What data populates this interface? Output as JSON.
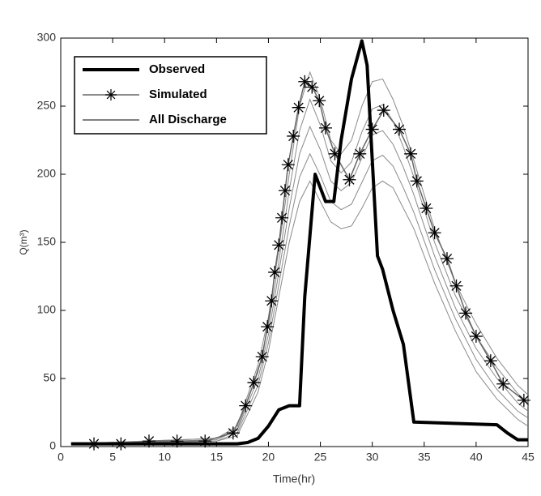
{
  "chart_data": {
    "type": "line",
    "xlabel": "Time(hr)",
    "ylabel": "Q(m³)",
    "xlim": [
      0,
      45
    ],
    "xticks": [
      0,
      5,
      10,
      15,
      20,
      25,
      30,
      35,
      40,
      45
    ],
    "ylim": [
      0,
      300
    ],
    "yticks": [
      0,
      50,
      100,
      150,
      200,
      250,
      300
    ],
    "legend": "upper-left",
    "series": [
      {
        "name": "Observed",
        "color": "#000000",
        "x": [
          1,
          17,
          18,
          19,
          20,
          21,
          22,
          23,
          23.5,
          24.5,
          25.5,
          26.3,
          27,
          28,
          29,
          29.5,
          30.5,
          31,
          32,
          33,
          34,
          42,
          43,
          44,
          45
        ],
        "values": [
          2,
          2,
          3,
          6,
          15,
          27,
          30,
          30,
          110,
          200,
          180,
          180,
          225,
          270,
          298,
          280,
          140,
          130,
          100,
          75,
          18,
          16,
          10,
          5,
          5
        ]
      },
      {
        "name": "Simulated",
        "color": "#666666",
        "marker_color": "#000000",
        "x": [
          3.2,
          5.8,
          8.5,
          11.2,
          13.9,
          16.6,
          17.8,
          18.6,
          19.4,
          19.9,
          20.3,
          20.6,
          21,
          21.3,
          21.6,
          21.9,
          22.4,
          22.9,
          23.5,
          24.2,
          24.9,
          25.5,
          26.4,
          27.8,
          28.8,
          30,
          31.1,
          32.6,
          33.7,
          34.3,
          35.2,
          36,
          37.2,
          38.1,
          39,
          40,
          41.4,
          42.6,
          44.6
        ],
        "values": [
          2,
          2,
          4,
          4,
          4,
          10,
          30,
          47,
          66,
          88,
          107,
          128,
          148,
          168,
          188,
          207,
          228,
          249,
          268,
          264,
          254,
          234,
          215,
          196,
          215,
          233,
          247,
          233,
          215,
          195,
          175,
          157,
          138,
          118,
          98,
          81,
          63,
          46,
          34
        ]
      },
      {
        "name": "All Discharge",
        "color": "#8a8a8a",
        "x": [
          1,
          15,
          17,
          19,
          20,
          21,
          22,
          23,
          24,
          25,
          26,
          27,
          28,
          29,
          30,
          31,
          32,
          33,
          34,
          35,
          36,
          38,
          40,
          42,
          44,
          45
        ],
        "members": [
          [
            2,
            4,
            8,
            40,
            70,
            110,
            150,
            180,
            195,
            180,
            165,
            160,
            162,
            175,
            190,
            195,
            190,
            175,
            160,
            140,
            120,
            85,
            55,
            35,
            20,
            15
          ],
          [
            2,
            4,
            10,
            45,
            76,
            119,
            162,
            198,
            215,
            199,
            180,
            174,
            178,
            194,
            210,
            214,
            206,
            190,
            172,
            151,
            130,
            94,
            64,
            42,
            26,
            21
          ],
          [
            2,
            5,
            12,
            50,
            82,
            128,
            175,
            215,
            235,
            218,
            195,
            188,
            194,
            212,
            229,
            232,
            222,
            205,
            185,
            162,
            140,
            102,
            72,
            50,
            32,
            26
          ],
          [
            2,
            6,
            13,
            55,
            89,
            136,
            188,
            232,
            255,
            236,
            210,
            201,
            209,
            231,
            248,
            251,
            239,
            220,
            198,
            174,
            150,
            111,
            81,
            58,
            39,
            32
          ],
          [
            2,
            6,
            15,
            60,
            95,
            145,
            200,
            250,
            275,
            255,
            225,
            215,
            225,
            250,
            268,
            270,
            255,
            235,
            210,
            185,
            160,
            120,
            90,
            65,
            45,
            38
          ]
        ]
      }
    ]
  }
}
